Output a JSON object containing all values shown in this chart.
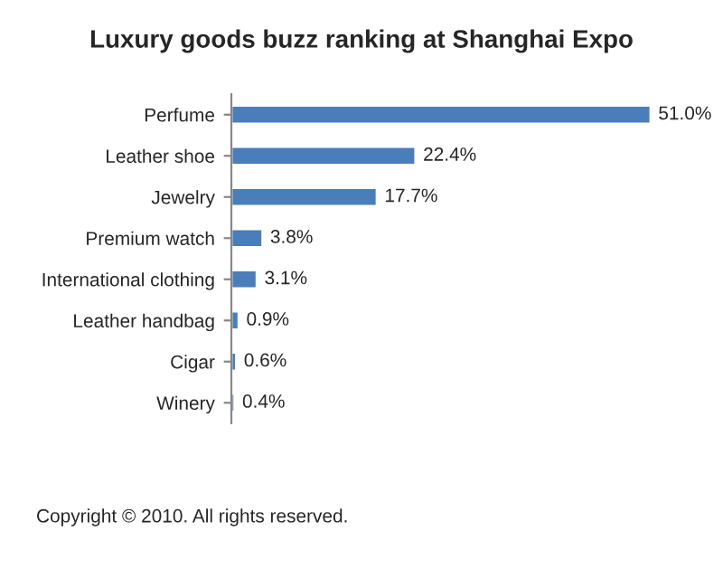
{
  "chart_data": {
    "type": "bar",
    "orientation": "horizontal",
    "title": "Luxury goods buzz ranking at Shanghai Expo",
    "categories": [
      "Perfume",
      "Leather shoe",
      "Jewelry",
      "Premium watch",
      "International clothing",
      "Leather handbag",
      "Cigar",
      "Winery"
    ],
    "values": [
      51.0,
      22.4,
      17.7,
      3.8,
      3.1,
      0.9,
      0.6,
      0.4
    ],
    "value_labels": [
      "51.0%",
      "22.4%",
      "17.7%",
      "3.8%",
      "3.1%",
      "0.9%",
      "0.6%",
      "0.4%"
    ],
    "color": "#4a7ebb",
    "grid": false,
    "legend": false,
    "annotations": [
      "Copyright © 2010. All rights reserved."
    ]
  }
}
